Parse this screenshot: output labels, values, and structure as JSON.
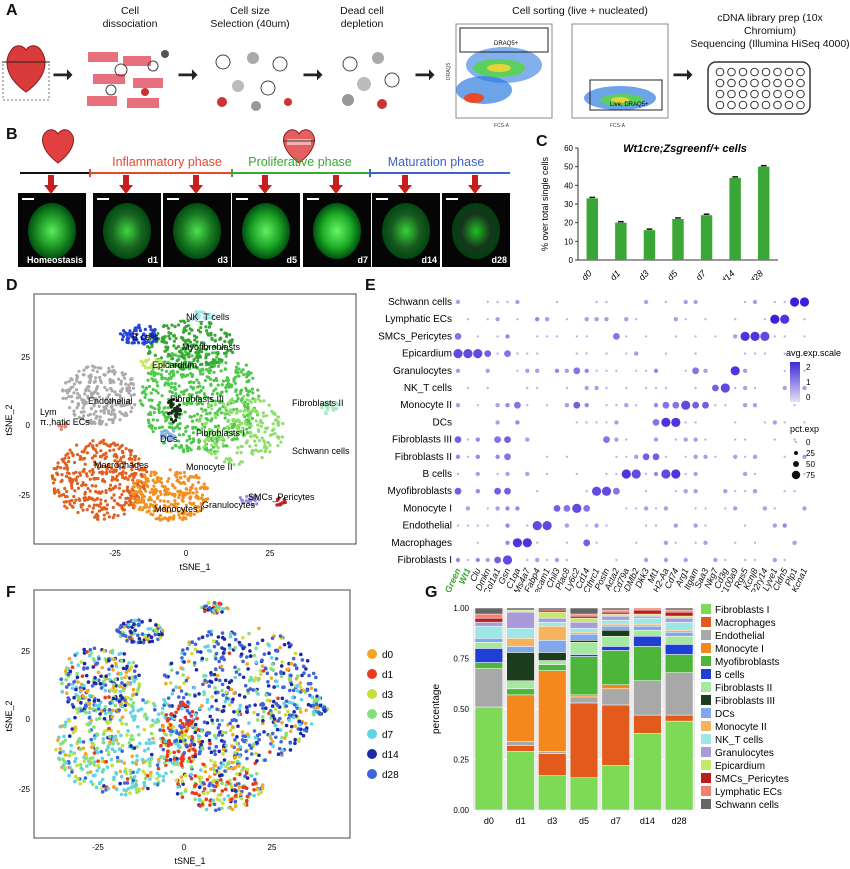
{
  "panel_labels": {
    "A": "A",
    "B": "B",
    "C": "C",
    "D": "D",
    "E": "E",
    "F": "F",
    "G": "G"
  },
  "panelA": {
    "steps": [
      "Cell\ndissociation",
      "Cell size\nSelection (40um)",
      "Dead cell\ndepletion",
      "Cell sorting (live + nucleated)",
      "cDNA library prep (10x Chromium)\nSequencing (Illumina HiSeq 4000)"
    ],
    "gate1": "DRAQ5+",
    "gate2": "Live, DRAQ5+",
    "fcs_axis": "FCS-A",
    "draq5_axis": "DRAQ5"
  },
  "panelB": {
    "phases": [
      {
        "name": "Inflammatory phase",
        "color": "#e8472e"
      },
      {
        "name": "Proliferative phase",
        "color": "#3aa635"
      },
      {
        "name": "Maturation phase",
        "color": "#3d63c6"
      }
    ],
    "timepoints": [
      "Homeostasis",
      "d1",
      "d3",
      "d5",
      "d7",
      "d14",
      "d28"
    ]
  },
  "panelC": {
    "title": "Wt1cre;Zsgreenf/+ cells",
    "ylabel": "% over total single cells"
  },
  "panelD": {
    "xlabel": "tSNE_1",
    "ylabel": "tSNE_2",
    "xticks": [
      "-25",
      "0",
      "25"
    ],
    "yticks": [
      "25",
      "0",
      "-25"
    ],
    "labels": [
      "NK_T cells",
      "B cells",
      "Myofibroblasts",
      "Epicardium",
      "Endothelial",
      "Fibroblasts III",
      "Fibroblasts II",
      "Lym\nπ.,hatic ECs",
      "DCs",
      "Fibroblasts I",
      "Schwann cells",
      "Macrophages",
      "Monocyte II",
      "Granulocytes",
      "SMCs_Pericytes",
      "Monocytes I"
    ]
  },
  "panelE": {
    "rows": [
      "Schwann cells",
      "Lymphatic ECs",
      "SMCs_Pericytes",
      "Epicardium",
      "Granulocytes",
      "NK_T cells",
      "Monocyte II",
      "DCs",
      "Fibroblasts III",
      "Fibroblasts II",
      "B cells",
      "Myofibroblasts",
      "Monocyte I",
      "Endothelial",
      "Macrophages",
      "Fibroblasts I"
    ],
    "genes": [
      "ZsGreen",
      "Wt1",
      "Clu",
      "Dmkn",
      "Col1a1",
      "Gsn",
      "C1qa",
      "Ms4a7",
      "Fabp4",
      "Pecam1",
      "Chil3",
      "Plac8",
      "Ly6c2",
      "Cd14",
      "Cthrc1",
      "Postn",
      "Acta2",
      "Cd79a",
      "H2-DMb2",
      "Dkk3",
      "Mt1",
      "H2-Aa",
      "Cd74",
      "Arg1",
      "Itgam",
      "Saa3",
      "Nkg7",
      "Cd3g",
      "S100a9",
      "Rgs5",
      "Kcnj8",
      "P2ry14",
      "Lyve1",
      "Cldn5",
      "Plp1",
      "Kcna1"
    ],
    "legend_title1": "avg.exp.scale",
    "legend_ticks1": [
      "2",
      "1",
      "0"
    ],
    "legend_title2": "pct.exp",
    "legend_ticks2": [
      "0",
      "25",
      "50",
      "75"
    ]
  },
  "panelF": {
    "xlabel": "tSNE_1",
    "ylabel": "tSNE_2",
    "xticks": [
      "-25",
      "0",
      "25"
    ],
    "yticks": [
      "25",
      "0",
      "-25"
    ],
    "legend": [
      {
        "name": "d0",
        "color": "#f6a623"
      },
      {
        "name": "d1",
        "color": "#e83a1e"
      },
      {
        "name": "d3",
        "color": "#c8e03a"
      },
      {
        "name": "d5",
        "color": "#86e07a"
      },
      {
        "name": "d7",
        "color": "#5ed4e6"
      },
      {
        "name": "d14",
        "color": "#1d2aa8"
      },
      {
        "name": "d28",
        "color": "#3f63d8"
      }
    ]
  },
  "panelG": {
    "ylabel": "percentage",
    "yticks": [
      "1.00",
      "0.75",
      "0.50",
      "0.25",
      "0.00"
    ]
  },
  "chart_data": [
    {
      "type": "bar",
      "title": "Wt1cre;Zsgreenf/+ cells",
      "ylabel": "% over total single cells",
      "categories": [
        "d0",
        "d1",
        "d3",
        "d5",
        "d7",
        "d14",
        "d28"
      ],
      "values": [
        33,
        20,
        16,
        22,
        24,
        44,
        50
      ],
      "ylim": [
        0,
        60
      ],
      "yticks": [
        0,
        10,
        20,
        30,
        40,
        50,
        60
      ],
      "color": "#3aa635"
    },
    {
      "type": "bar",
      "stacked": true,
      "ylabel": "percentage",
      "categories": [
        "d0",
        "d1",
        "d3",
        "d5",
        "d7",
        "d14",
        "d28"
      ],
      "ylim": [
        0,
        1
      ],
      "series": [
        {
          "name": "Fibroblasts I",
          "color": "#7ed957",
          "values": [
            0.51,
            0.29,
            0.17,
            0.16,
            0.22,
            0.38,
            0.44
          ]
        },
        {
          "name": "Macrophages",
          "color": "#e35b1c",
          "values": [
            0.0,
            0.03,
            0.11,
            0.37,
            0.3,
            0.09,
            0.03
          ]
        },
        {
          "name": "Endothelial",
          "color": "#a8a8a8",
          "values": [
            0.19,
            0.02,
            0.01,
            0.03,
            0.08,
            0.17,
            0.21
          ]
        },
        {
          "name": "Monocyte I",
          "color": "#f5871f",
          "values": [
            0.0,
            0.23,
            0.4,
            0.01,
            0.02,
            0.0,
            0.0
          ]
        },
        {
          "name": "Myofibroblasts",
          "color": "#4db53a",
          "values": [
            0.03,
            0.03,
            0.03,
            0.19,
            0.17,
            0.17,
            0.09
          ]
        },
        {
          "name": "B cells",
          "color": "#1f3fd4",
          "values": [
            0.07,
            0.0,
            0.0,
            0.01,
            0.02,
            0.05,
            0.05
          ]
        },
        {
          "name": "Fibroblasts II",
          "color": "#a6e8a0",
          "values": [
            0.03,
            0.04,
            0.02,
            0.06,
            0.05,
            0.03,
            0.04
          ]
        },
        {
          "name": "Fibroblasts III",
          "color": "#1b3d1b",
          "values": [
            0.0,
            0.14,
            0.04,
            0.01,
            0.03,
            0.0,
            0.0
          ]
        },
        {
          "name": "DCs",
          "color": "#7fa9ea",
          "values": [
            0.02,
            0.03,
            0.06,
            0.03,
            0.02,
            0.02,
            0.02
          ]
        },
        {
          "name": "Monocyte II",
          "color": "#f6b25c",
          "values": [
            0.0,
            0.04,
            0.07,
            0.01,
            0.01,
            0.01,
            0.01
          ]
        },
        {
          "name": "NK_T cells",
          "color": "#9fe6e6",
          "values": [
            0.06,
            0.05,
            0.02,
            0.02,
            0.02,
            0.03,
            0.04
          ]
        },
        {
          "name": "Granulocytes",
          "color": "#a99ad9",
          "values": [
            0.02,
            0.08,
            0.02,
            0.03,
            0.02,
            0.01,
            0.02
          ]
        },
        {
          "name": "Epicardium",
          "color": "#c6e86a",
          "values": [
            0.0,
            0.01,
            0.03,
            0.02,
            0.01,
            0.01,
            0.01
          ]
        },
        {
          "name": "SMCs_Pericytes",
          "color": "#b81e1e",
          "values": [
            0.02,
            0.0,
            0.01,
            0.01,
            0.01,
            0.02,
            0.02
          ]
        },
        {
          "name": "Lymphatic ECs",
          "color": "#f08070",
          "values": [
            0.02,
            0.0,
            0.0,
            0.01,
            0.01,
            0.01,
            0.01
          ]
        },
        {
          "name": "Schwann cells",
          "color": "#666666",
          "values": [
            0.03,
            0.01,
            0.01,
            0.03,
            0.01,
            0.0,
            0.01
          ]
        }
      ]
    }
  ]
}
